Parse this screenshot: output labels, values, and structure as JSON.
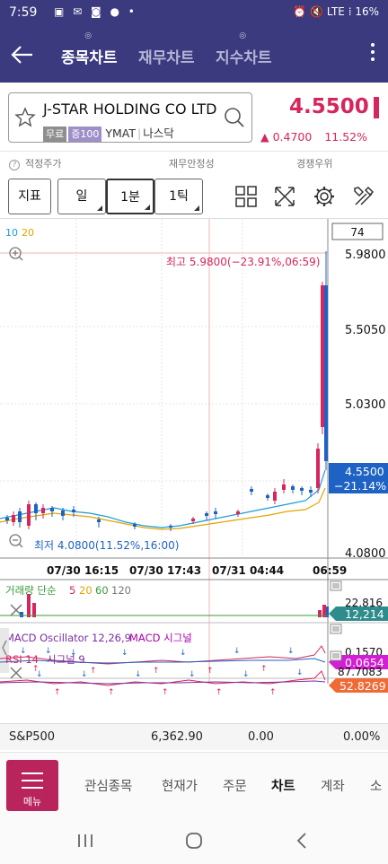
{
  "status": {
    "time": "7:59",
    "notifications": "▣ ✉ ◙ ● •",
    "right": "⏰ 🔇 LTE ⁞ 16%"
  },
  "header": {
    "tabs": [
      {
        "label": "종목차트",
        "dot": "◎"
      },
      {
        "label": "재무차트",
        "dot": ""
      },
      {
        "label": "지수차트",
        "dot": "◎"
      }
    ]
  },
  "stock": {
    "name": "J-STAR HOLDING CO LTD",
    "badge_free": "무료",
    "badge_margin": "증100",
    "ticker": "YMAT",
    "market": "나스닥",
    "price": "4.5500",
    "change": "▲ 0.4700",
    "change_pct": "11.52%"
  },
  "info_row": {
    "fair_price": "적정주가",
    "stability": "재무안정성",
    "competition": "경쟁우위"
  },
  "toolbar": {
    "indicator": "지표",
    "day": "일",
    "minute": "1분",
    "tick": "1틱"
  },
  "chart": {
    "ma_label_10": "10",
    "ma_label_20": "20",
    "count": "74",
    "high_label": "최고 5.9800(−23.91%,06:59)",
    "low_label": "최저 4.0800(11.52%,16:00)",
    "price_axis": [
      "5.9800",
      "5.5050",
      "5.0300",
      "4.0800"
    ],
    "current_tag_price": "4.5500",
    "current_tag_pct": "−21.14%",
    "time_axis": [
      "07/30 16:15",
      "07/30 17:43",
      "07/31 04:44",
      "06:59"
    ],
    "volume_label": "거래량 단순",
    "volume_ma": [
      "5",
      "20",
      "60",
      "120"
    ],
    "volume_max": "22,816",
    "volume_current": "12,214",
    "macd_label": "MACD Oscillator 12,26,9",
    "macd_signal": "MACD 시그널",
    "macd_axis": "0.1570",
    "macd_current": "0.0654",
    "rsi_label": "RSI 14",
    "rsi_signal": "시그널 9",
    "rsi_axis": "87.7083",
    "rsi_current": "52.8269"
  },
  "index_row": {
    "name": "S&P500",
    "value": "6,362.90",
    "change": "0.00",
    "pct": "0.00%"
  },
  "bottom_nav": {
    "menu": "메뉴",
    "items": [
      "관심종목",
      "현재가",
      "주문",
      "차트",
      "계좌",
      "소"
    ]
  },
  "colors": {
    "header": "#3b3a7e",
    "up": "#d6265d",
    "down": "#1e63c4",
    "menu": "#b8245b"
  }
}
